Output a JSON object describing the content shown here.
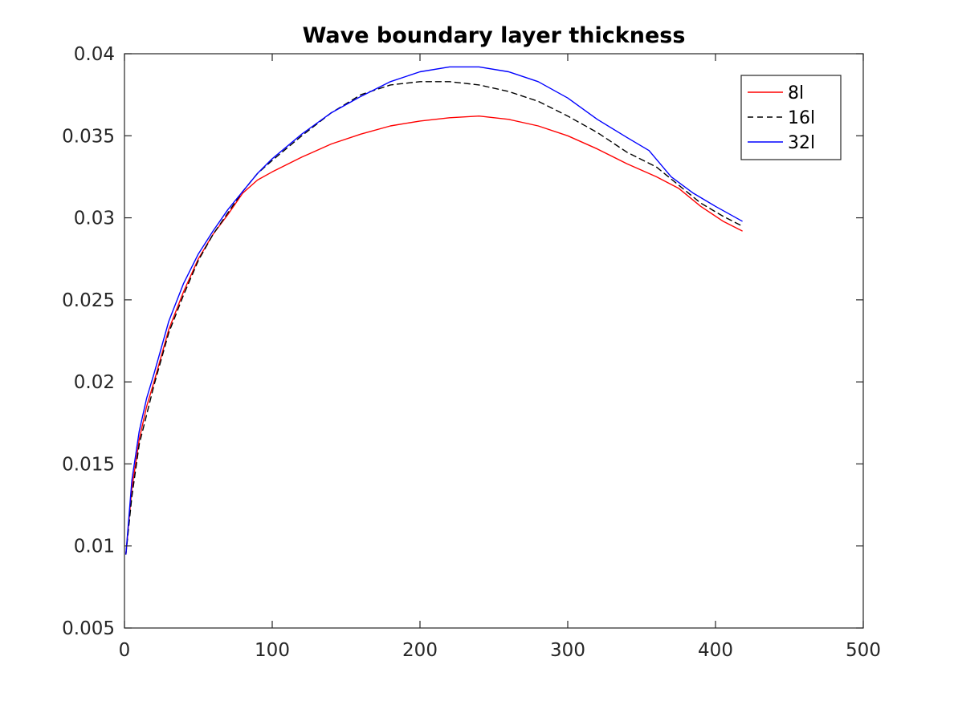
{
  "chart_data": {
    "type": "line",
    "title": "Wave boundary layer thickness",
    "xlabel": "",
    "ylabel": "",
    "xlim": [
      0,
      500
    ],
    "ylim": [
      0.005,
      0.04
    ],
    "xticks": [
      0,
      100,
      200,
      300,
      400,
      500
    ],
    "xtick_labels": [
      "0",
      "100",
      "200",
      "300",
      "400",
      "500"
    ],
    "yticks": [
      0.005,
      0.01,
      0.015,
      0.02,
      0.025,
      0.03,
      0.035,
      0.04
    ],
    "ytick_labels": [
      "0.005",
      "0.01",
      "0.015",
      "0.02",
      "0.025",
      "0.03",
      "0.035",
      "0.04"
    ],
    "grid": false,
    "legend_position": "top-right",
    "series": [
      {
        "name": "8l",
        "color": "#ff0000",
        "style": "solid",
        "x": [
          1,
          5,
          10,
          15,
          20,
          30,
          40,
          50,
          60,
          70,
          80,
          90,
          100,
          120,
          140,
          160,
          180,
          200,
          220,
          240,
          260,
          280,
          300,
          320,
          340,
          360,
          375,
          390,
          405,
          418
        ],
        "y": [
          0.0095,
          0.0135,
          0.0165,
          0.0185,
          0.02,
          0.0232,
          0.0255,
          0.0275,
          0.029,
          0.0302,
          0.0315,
          0.0323,
          0.0328,
          0.0337,
          0.0345,
          0.0351,
          0.0356,
          0.0359,
          0.0361,
          0.0362,
          0.036,
          0.0356,
          0.035,
          0.0342,
          0.0333,
          0.0325,
          0.0318,
          0.0307,
          0.0298,
          0.0292
        ]
      },
      {
        "name": "16l",
        "color": "#000000",
        "style": "dashed",
        "x": [
          1,
          5,
          10,
          15,
          20,
          30,
          40,
          50,
          60,
          70,
          80,
          90,
          100,
          120,
          140,
          160,
          180,
          200,
          220,
          240,
          260,
          280,
          300,
          320,
          340,
          360,
          375,
          390,
          405,
          418
        ],
        "y": [
          0.0095,
          0.013,
          0.0162,
          0.018,
          0.0198,
          0.023,
          0.0253,
          0.0274,
          0.029,
          0.0303,
          0.0316,
          0.0327,
          0.0335,
          0.035,
          0.0364,
          0.0375,
          0.0381,
          0.0383,
          0.0383,
          0.0381,
          0.0377,
          0.0371,
          0.0362,
          0.0352,
          0.034,
          0.0331,
          0.032,
          0.0309,
          0.0301,
          0.0295
        ]
      },
      {
        "name": "32l",
        "color": "#0000ff",
        "style": "solid",
        "x": [
          1,
          5,
          10,
          15,
          20,
          30,
          40,
          50,
          60,
          70,
          80,
          90,
          100,
          120,
          140,
          160,
          180,
          200,
          220,
          240,
          260,
          280,
          300,
          320,
          340,
          355,
          370,
          385,
          400,
          418
        ],
        "y": [
          0.0095,
          0.014,
          0.017,
          0.019,
          0.0205,
          0.0237,
          0.026,
          0.0278,
          0.0292,
          0.0305,
          0.0316,
          0.0327,
          0.0336,
          0.0351,
          0.0364,
          0.0374,
          0.0383,
          0.0389,
          0.0392,
          0.0392,
          0.0389,
          0.0383,
          0.0373,
          0.036,
          0.0349,
          0.0341,
          0.0325,
          0.0315,
          0.0307,
          0.0298
        ]
      }
    ]
  }
}
